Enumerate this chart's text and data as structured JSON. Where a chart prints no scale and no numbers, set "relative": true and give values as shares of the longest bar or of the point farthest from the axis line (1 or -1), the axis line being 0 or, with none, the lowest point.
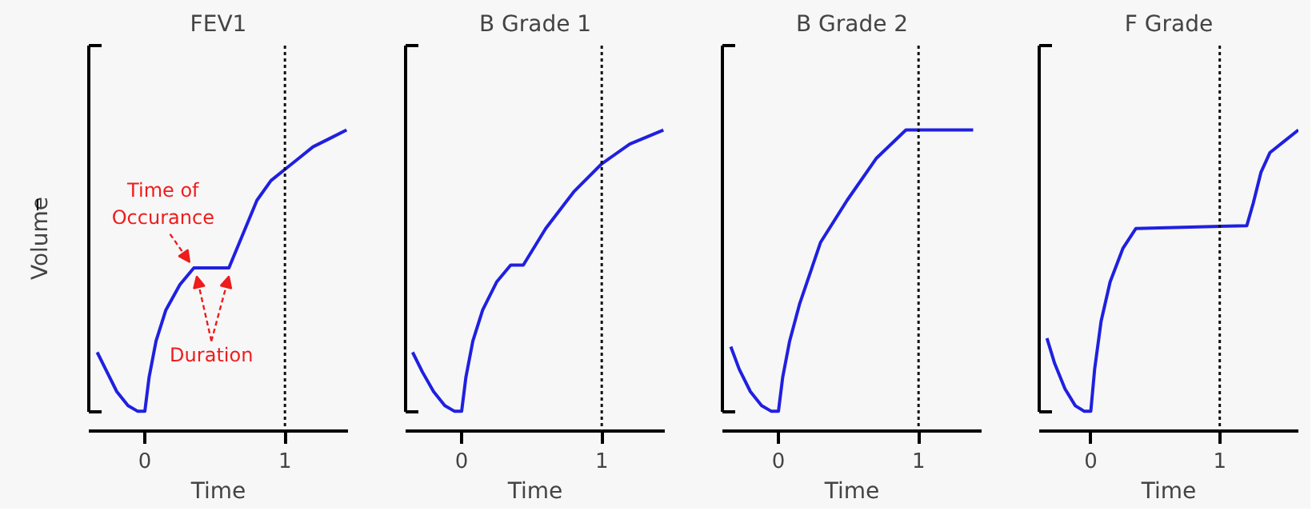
{
  "chart_data": [
    {
      "type": "line",
      "title": "FEV1",
      "xlabel": "Time",
      "ylabel": "Volume",
      "relative": true,
      "tick_labels": "x",
      "xlim": [
        -0.4,
        1.45
      ],
      "xticks": [
        0,
        1
      ],
      "series": [
        {
          "color": "#2020e0",
          "x": [
            -0.34,
            -0.28,
            -0.2,
            -0.12,
            -0.05,
            0,
            0.03,
            0.08,
            0.15,
            0.25,
            0.35,
            0.6,
            0.7,
            0.8,
            0.9,
            1.0,
            1.1,
            1.2,
            1.32,
            1.44
          ],
          "values": [
            0.21,
            0.15,
            0.07,
            0.02,
            0.0,
            0.0,
            0.12,
            0.25,
            0.36,
            0.45,
            0.51,
            0.51,
            0.63,
            0.75,
            0.82,
            0.86,
            0.9,
            0.94,
            0.97,
            1.0
          ]
        }
      ],
      "ref_lines": [
        {
          "axis": "x",
          "value": 1,
          "color": "#111111",
          "line_style": "dotted"
        }
      ],
      "annotations": [
        {
          "text": "Time of\nOccurance",
          "x": 0.35,
          "y": 0.51
        },
        {
          "text": "Duration",
          "x": 0.6,
          "y": 0.51
        }
      ]
    },
    {
      "type": "line",
      "title": "B Grade 1",
      "xlabel": "Time",
      "relative": true,
      "tick_labels": "x",
      "xlim": [
        -0.4,
        1.45
      ],
      "xticks": [
        0,
        1
      ],
      "series": [
        {
          "color": "#2020e0",
          "x": [
            -0.35,
            -0.28,
            -0.2,
            -0.12,
            -0.05,
            0,
            0.03,
            0.08,
            0.15,
            0.25,
            0.35,
            0.44,
            0.6,
            0.8,
            1.0,
            1.2,
            1.44
          ],
          "values": [
            0.21,
            0.14,
            0.07,
            0.02,
            0.0,
            0.0,
            0.12,
            0.25,
            0.36,
            0.46,
            0.52,
            0.52,
            0.65,
            0.78,
            0.88,
            0.95,
            1.0
          ]
        }
      ],
      "ref_lines": [
        {
          "axis": "x",
          "value": 1,
          "color": "#111111",
          "line_style": "dotted"
        }
      ]
    },
    {
      "type": "line",
      "title": "B Grade 2",
      "xlabel": "Time",
      "relative": true,
      "tick_labels": "x",
      "xlim": [
        -0.4,
        1.45
      ],
      "xticks": [
        0,
        1
      ],
      "series": [
        {
          "color": "#2020e0",
          "x": [
            -0.34,
            -0.28,
            -0.2,
            -0.12,
            -0.05,
            0,
            0.03,
            0.08,
            0.15,
            0.3,
            0.49,
            0.7,
            0.91,
            1.39
          ],
          "values": [
            0.23,
            0.15,
            0.07,
            0.02,
            0.0,
            0.0,
            0.12,
            0.25,
            0.38,
            0.6,
            0.75,
            0.9,
            1.0,
            1.0
          ]
        }
      ],
      "ref_lines": [
        {
          "axis": "x",
          "value": 1,
          "color": "#111111",
          "line_style": "dotted"
        }
      ]
    },
    {
      "type": "line",
      "title": "F Grade",
      "xlabel": "Time",
      "relative": true,
      "tick_labels": "x",
      "xlim": [
        -0.4,
        1.61
      ],
      "xticks": [
        0,
        1
      ],
      "series": [
        {
          "color": "#2020e0",
          "x": [
            -0.34,
            -0.28,
            -0.2,
            -0.12,
            -0.05,
            0,
            0.03,
            0.08,
            0.15,
            0.25,
            0.35,
            1.21,
            1.26,
            1.32,
            1.39,
            1.5,
            1.61
          ],
          "values": [
            0.26,
            0.17,
            0.08,
            0.02,
            0.0,
            0.0,
            0.15,
            0.32,
            0.46,
            0.58,
            0.65,
            0.66,
            0.74,
            0.85,
            0.92,
            0.96,
            1.0
          ]
        }
      ],
      "ref_lines": [
        {
          "axis": "x",
          "value": 1,
          "color": "#111111",
          "line_style": "dotted"
        }
      ]
    }
  ]
}
